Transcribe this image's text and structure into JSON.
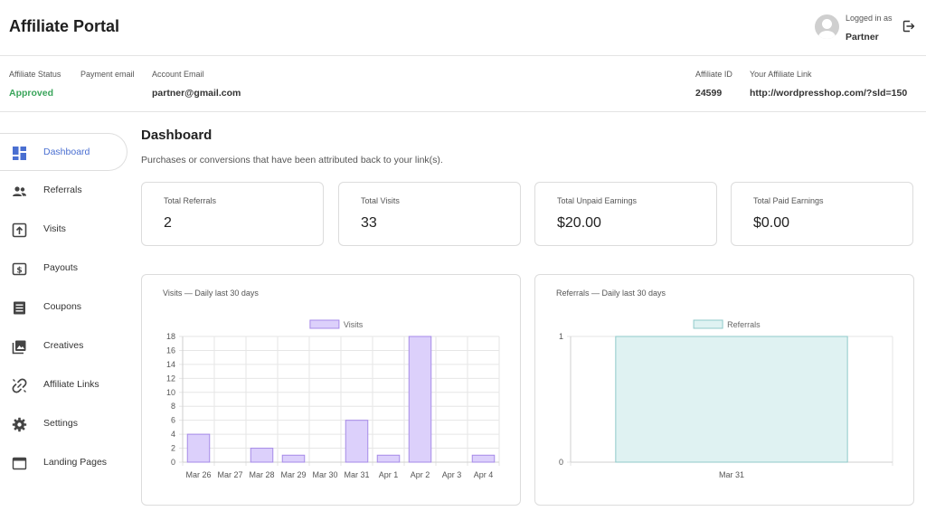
{
  "header": {
    "title": "Affiliate Portal",
    "logged_in_label": "Logged in as",
    "user_name": "Partner"
  },
  "info": {
    "status_label": "Affiliate Status",
    "status_value": "Approved",
    "payment_email_label": "Payment email",
    "account_email_label": "Account Email",
    "account_email_value": "partner@gmail.com",
    "affiliate_id_label": "Affiliate ID",
    "affiliate_id_value": "24599",
    "link_label": "Your Affiliate Link",
    "link_value": "http://wordpresshop.com/?sld=150",
    "approved_color": "#3aa55b"
  },
  "sidebar": {
    "items": [
      {
        "label": "Dashboard",
        "icon": "dashboard-icon",
        "active": true
      },
      {
        "label": "Referrals",
        "icon": "people-icon"
      },
      {
        "label": "Visits",
        "icon": "visits-icon"
      },
      {
        "label": "Payouts",
        "icon": "dollar-icon"
      },
      {
        "label": "Coupons",
        "icon": "coupon-icon"
      },
      {
        "label": "Creatives",
        "icon": "images-icon"
      },
      {
        "label": "Affiliate Links",
        "icon": "link-icon"
      },
      {
        "label": "Settings",
        "icon": "gear-icon"
      },
      {
        "label": "Landing Pages",
        "icon": "browser-icon"
      }
    ],
    "accent": "#4a6fd1"
  },
  "main": {
    "title": "Dashboard",
    "subtitle": "Purchases or conversions that have been attributed back to your link(s)."
  },
  "stats": [
    {
      "label": "Total Referrals",
      "value": "2"
    },
    {
      "label": "Total Visits",
      "value": "33"
    },
    {
      "label": "Total Unpaid Earnings",
      "value": "$20.00"
    },
    {
      "label": "Total Paid Earnings",
      "value": "$0.00"
    }
  ],
  "chart_data": [
    {
      "type": "bar",
      "title": "Visits — Daily last 30 days",
      "categories": [
        "Mar 26",
        "Mar 27",
        "Mar 28",
        "Mar 29",
        "Mar 30",
        "Mar 31",
        "Apr 1",
        "Apr 2",
        "Apr 3",
        "Apr 4"
      ],
      "series": [
        {
          "name": "Visits",
          "values": [
            4,
            0,
            2,
            1,
            0,
            6,
            1,
            18,
            0,
            1
          ]
        }
      ],
      "ylim": [
        0,
        18
      ],
      "yticks": [
        0,
        2,
        4,
        6,
        8,
        10,
        12,
        14,
        16,
        18
      ],
      "grid": true,
      "legend": "top-center",
      "fill": "#dcd0fb",
      "stroke": "#a68ae8"
    },
    {
      "type": "bar",
      "title": "Referrals — Daily last 30 days",
      "categories": [
        "Mar 31"
      ],
      "series": [
        {
          "name": "Referrals",
          "values": [
            1
          ]
        }
      ],
      "ylim": [
        0,
        1
      ],
      "yticks": [
        0,
        1
      ],
      "grid": true,
      "legend": "top-center",
      "fill": "#dff2f2",
      "stroke": "#8fcaca"
    }
  ]
}
